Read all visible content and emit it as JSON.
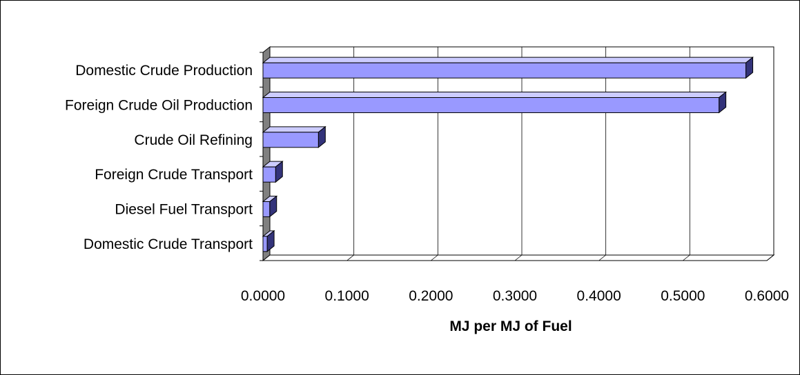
{
  "chart_data": {
    "type": "bar",
    "orientation": "horizontal",
    "categories": [
      "Domestic Crude Production",
      "Foreign Crude Oil Production",
      "Crude Oil Refining",
      "Foreign Crude Transport",
      "Diesel Fuel Transport",
      "Domestic Crude Transport"
    ],
    "values": [
      0.575,
      0.543,
      0.066,
      0.015,
      0.008,
      0.005
    ],
    "xlabel": "MJ per MJ of Fuel",
    "ylabel": "",
    "xlim": [
      0,
      0.6
    ],
    "tick_labels": [
      "0.0000",
      "0.1000",
      "0.2000",
      "0.3000",
      "0.4000",
      "0.5000",
      "0.6000"
    ],
    "grid": "vertical",
    "legend": "none",
    "colors": {
      "bar_front": "#9999ff",
      "bar_top": "#ccccff",
      "bar_side": "#33337a",
      "wall": "#808080",
      "gridline": "#000000"
    }
  }
}
